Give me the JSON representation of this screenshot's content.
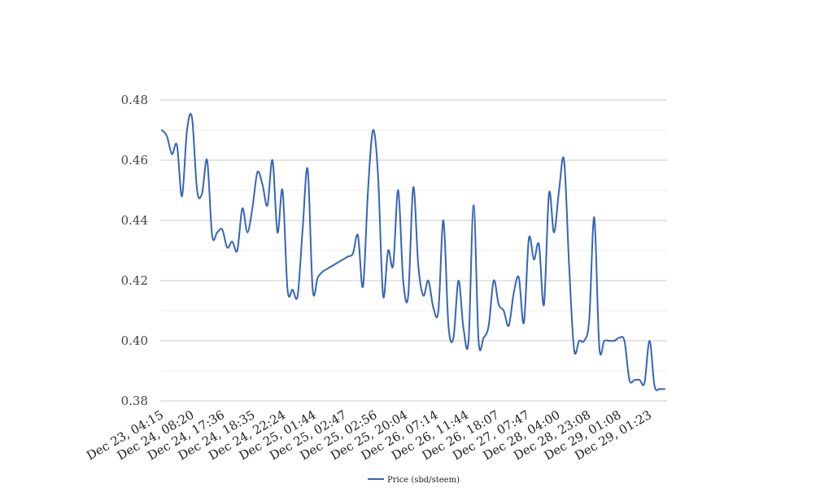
{
  "chart_data": {
    "type": "line",
    "title": "",
    "xlabel": "",
    "ylabel": "",
    "ylim": [
      0.38,
      0.48
    ],
    "yticks": [
      0.38,
      0.4,
      0.42,
      0.44,
      0.46,
      0.48
    ],
    "ytick_labels": [
      "0.38",
      "0.40",
      "0.42",
      "0.44",
      "0.46",
      "0.48"
    ],
    "xtick_labels": [
      "Dec 23, 04:15",
      "Dec 24, 08:20",
      "Dec 24, 17:36",
      "Dec 24, 18:35",
      "Dec 24, 22:24",
      "Dec 25, 01:44",
      "Dec 25, 02:47",
      "Dec 25, 02:56",
      "Dec 25, 20:04",
      "Dec 26, 07:14",
      "Dec 26, 11:44",
      "Dec 26, 18:07",
      "Dec 27, 07:47",
      "Dec 28, 04:00",
      "Dec 28, 23:08",
      "Dec 29, 01:08",
      "Dec 29, 01:23"
    ],
    "grid": true,
    "legend_position": "bottom",
    "series": [
      {
        "name": "Price (sbd/steem)",
        "color": "#3565b8",
        "values": [
          0.47,
          0.468,
          0.462,
          0.465,
          0.448,
          0.47,
          0.474,
          0.45,
          0.449,
          0.46,
          0.435,
          0.436,
          0.437,
          0.431,
          0.433,
          0.43,
          0.444,
          0.436,
          0.444,
          0.456,
          0.452,
          0.445,
          0.46,
          0.436,
          0.45,
          0.417,
          0.417,
          0.415,
          0.437,
          0.457,
          0.417,
          0.421,
          0.423,
          0.424,
          0.425,
          0.426,
          0.427,
          0.428,
          0.429,
          0.435,
          0.418,
          0.45,
          0.47,
          0.455,
          0.415,
          0.43,
          0.425,
          0.45,
          0.42,
          0.415,
          0.451,
          0.425,
          0.415,
          0.42,
          0.411,
          0.41,
          0.44,
          0.405,
          0.401,
          0.42,
          0.404,
          0.4,
          0.445,
          0.4,
          0.401,
          0.405,
          0.42,
          0.412,
          0.41,
          0.405,
          0.416,
          0.421,
          0.406,
          0.434,
          0.427,
          0.432,
          0.412,
          0.449,
          0.436,
          0.45,
          0.46,
          0.425,
          0.397,
          0.4,
          0.4,
          0.407,
          0.441,
          0.398,
          0.4,
          0.4,
          0.4,
          0.401,
          0.4,
          0.387,
          0.387,
          0.387,
          0.386,
          0.4,
          0.385,
          0.384,
          0.384
        ]
      }
    ]
  }
}
